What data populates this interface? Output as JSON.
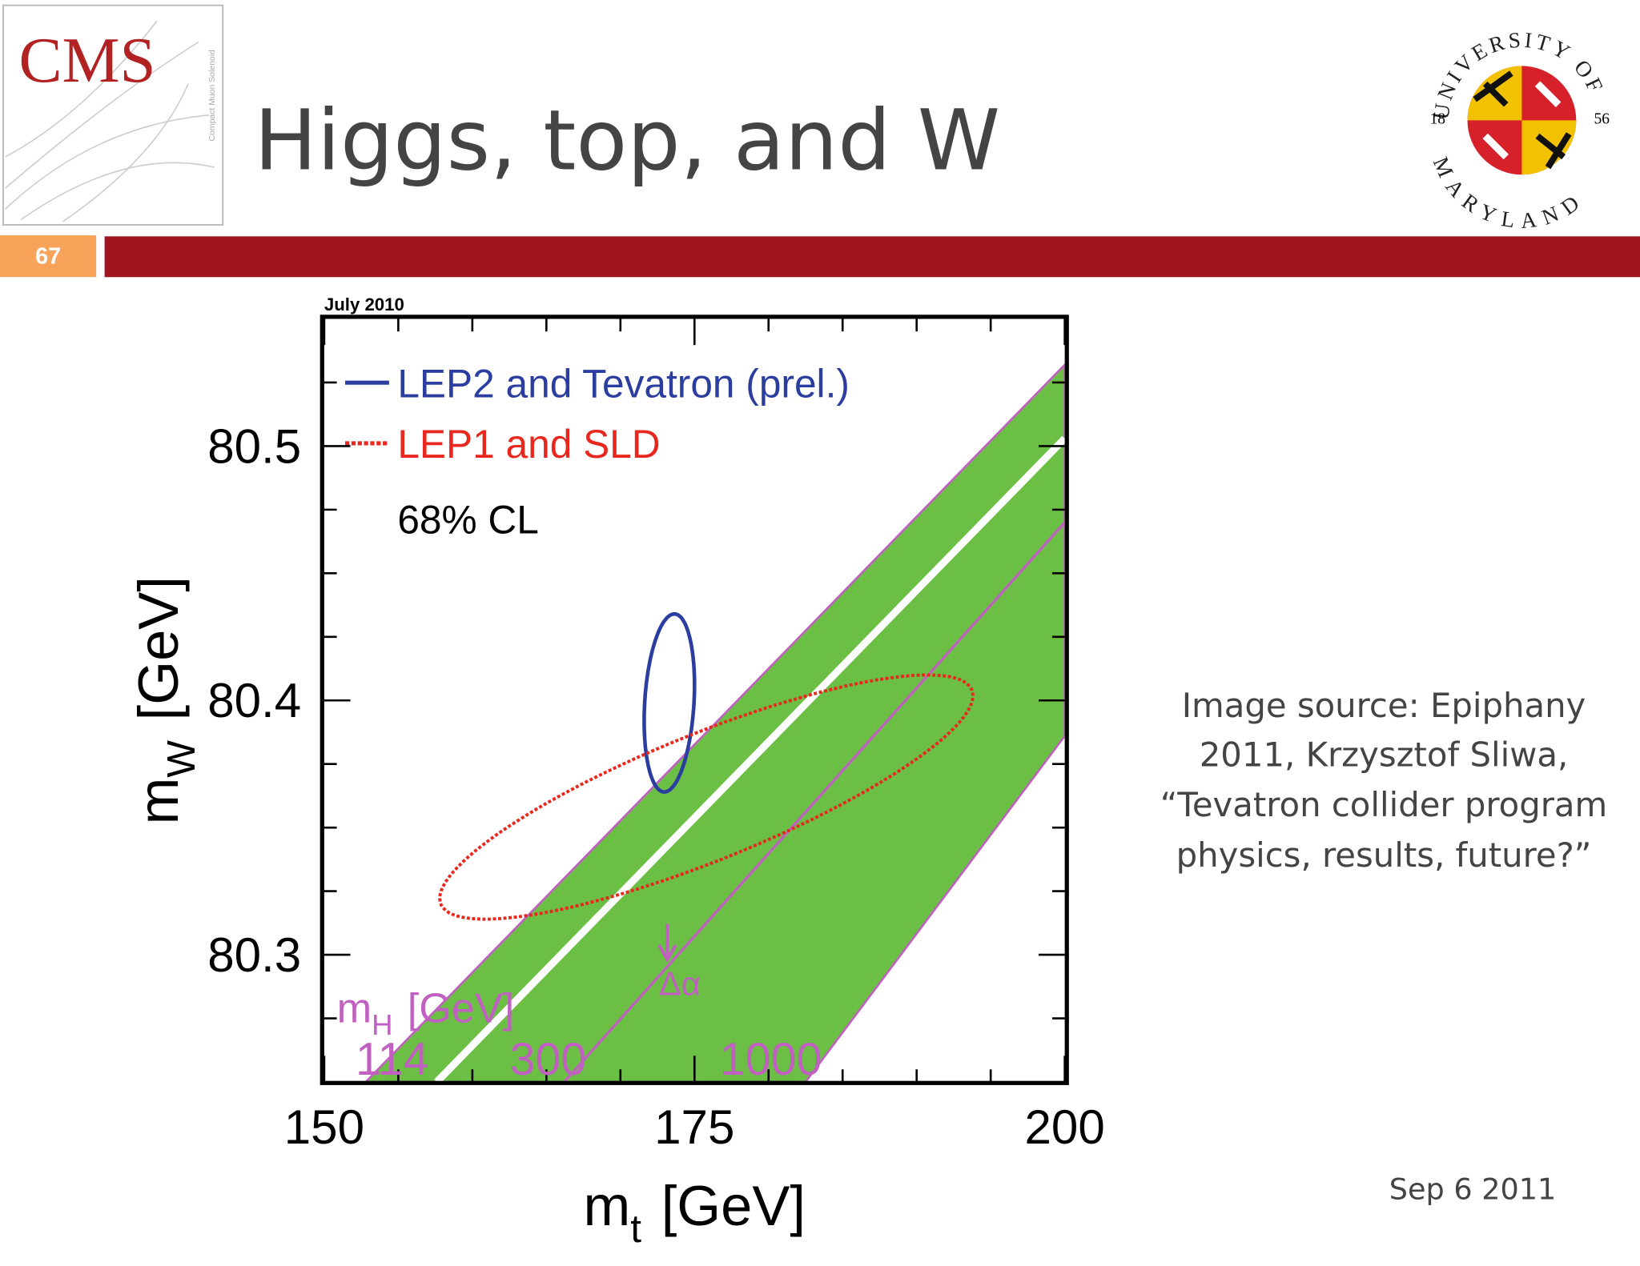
{
  "slide": {
    "title": "Higgs, top, and W",
    "number": "67",
    "logo_text": "CMS",
    "logo_subtext": "Compact Muon Solenoid",
    "university_top": "UNIVERSITY OF",
    "university_bottom": "MARYLAND",
    "year_left": "18",
    "year_right": "56",
    "source_lines": [
      "Image source:  Epiphany",
      "2011, Krzysztof Sliwa,",
      "“Tevatron collider program",
      "physics, results, future?”"
    ],
    "date": "Sep 6 2011"
  },
  "chart_data": {
    "type": "contour",
    "date_label": "July 2010",
    "xlabel": {
      "base": "m",
      "sub": "t",
      "rest": "[GeV]"
    },
    "ylabel": {
      "base": "m",
      "sub": "W",
      "rest": "[GeV]"
    },
    "xlim": [
      150,
      200
    ],
    "xticks": [
      150,
      175,
      200
    ],
    "xminor": [
      155,
      160,
      165,
      170,
      180,
      185,
      190,
      195
    ],
    "ylim": [
      80.25,
      80.55
    ],
    "yticks": [
      80.3,
      80.4,
      80.5
    ],
    "yminor": [
      80.275,
      80.325,
      80.35,
      80.375,
      80.425,
      80.45,
      80.475,
      80.525
    ],
    "cl_label": "68% CL",
    "series": [
      {
        "name": "LEP2 and Tevatron (prel.)",
        "color": "#2b3ea0",
        "cx": 173.3,
        "cy": 80.399,
        "rx": 1.7,
        "ry": 0.035,
        "rho": 0.2,
        "dashed": false
      },
      {
        "name": "LEP1 and SLD",
        "color": "#e8281e",
        "cx": 175.8,
        "cy": 80.362,
        "rx": 18.0,
        "ry": 0.048,
        "rho": 0.83,
        "dashed": true
      }
    ],
    "bands": [
      {
        "color": "#6cbf45",
        "edge": "#c060c0",
        "x": [
          152.8,
          200,
          200,
          182.5
        ],
        "y": [
          80.25,
          80.532,
          80.386,
          80.25
        ]
      }
    ],
    "lines": [
      {
        "color": "#ffffff",
        "x": [
          157.6,
          200
        ],
        "y": [
          80.25,
          80.503
        ]
      },
      {
        "color": "#c060c0",
        "x": [
          166.2,
          200
        ],
        "y": [
          80.25,
          80.47
        ]
      }
    ],
    "mh_label": {
      "base": "m",
      "sub": "H",
      "rest": "[GeV]"
    },
    "mh_values": [
      "114",
      "300",
      "1000"
    ],
    "alpha_label": "Δα"
  }
}
